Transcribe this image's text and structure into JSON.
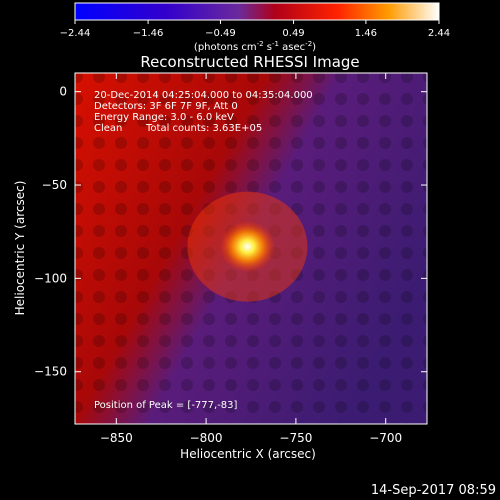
{
  "chart_data": {
    "type": "heatmap",
    "title": "Reconstructed RHESSI Image",
    "xlabel": "Heliocentric X (arcsec)",
    "ylabel": "Heliocentric Y (arcsec)",
    "xlim": [
      -873,
      -677
    ],
    "ylim": [
      -178,
      10
    ],
    "xticks": [
      -850,
      -800,
      -750,
      -700
    ],
    "yticks": [
      0,
      -50,
      -100,
      -150
    ],
    "colorbar": {
      "ticks": [
        "-2.44",
        "-1.46",
        "-0.49",
        "0.49",
        "1.46",
        "2.44"
      ],
      "unit_label": "(photons cm",
      "unit_exp1": "-2",
      "unit_mid": " s",
      "unit_exp2": "-1",
      "unit_mid2": " asec",
      "unit_exp3": "-2",
      "unit_end": ")",
      "range": [
        -2.44,
        2.44
      ]
    },
    "annotations": {
      "line1": "20-Dec-2014 04:25:04.000 to 04:35:04.000",
      "line2": "Detectors: 3F 6F 7F 9F, Att 0",
      "line3": "Energy Range: 3.0 - 6.0 keV",
      "line4_a": "Clean",
      "line4_b": "Total counts: 3.63E+05",
      "peak": "Position of Peak = [-777,-83]"
    },
    "peak": {
      "x": -777,
      "y": -83,
      "value": 2.44
    },
    "timestamp": "14-Sep-2017 08:59"
  }
}
